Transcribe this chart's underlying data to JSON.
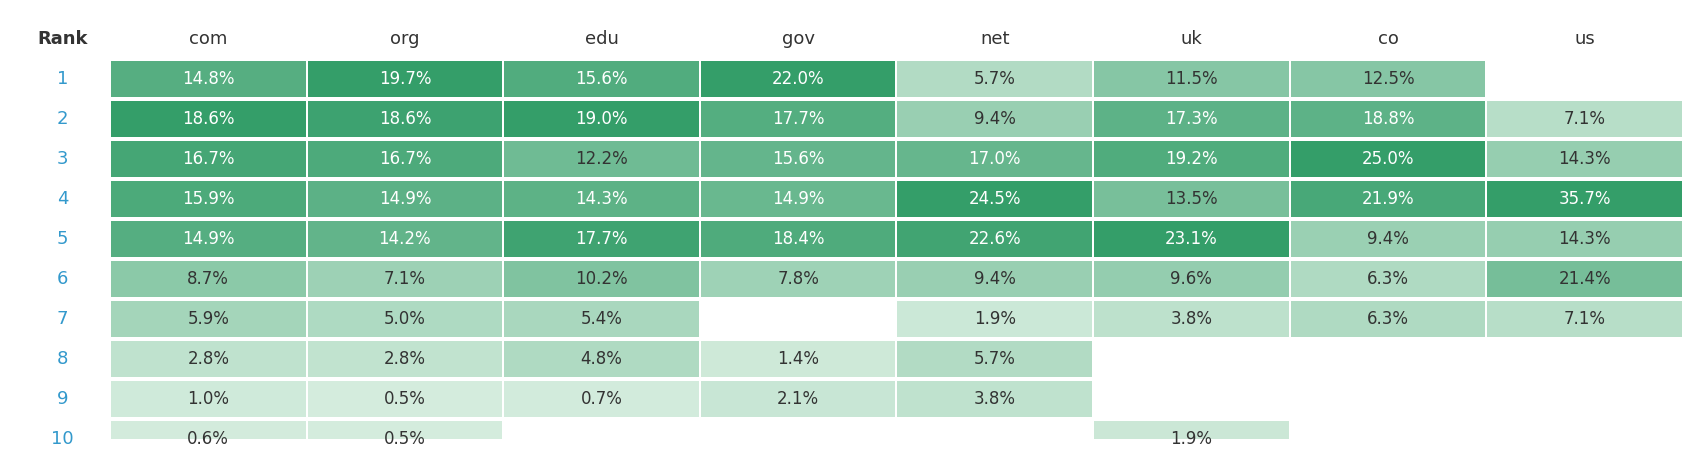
{
  "columns": [
    "Rank",
    "com",
    "org",
    "edu",
    "gov",
    "net",
    "uk",
    "co",
    "us"
  ],
  "rows": [
    [
      1,
      "14.8%",
      "19.7%",
      "15.6%",
      "22.0%",
      "5.7%",
      "11.5%",
      "12.5%",
      ""
    ],
    [
      2,
      "18.6%",
      "18.6%",
      "19.0%",
      "17.7%",
      "9.4%",
      "17.3%",
      "18.8%",
      "7.1%"
    ],
    [
      3,
      "16.7%",
      "16.7%",
      "12.2%",
      "15.6%",
      "17.0%",
      "19.2%",
      "25.0%",
      "14.3%"
    ],
    [
      4,
      "15.9%",
      "14.9%",
      "14.3%",
      "14.9%",
      "24.5%",
      "13.5%",
      "21.9%",
      "35.7%"
    ],
    [
      5,
      "14.9%",
      "14.2%",
      "17.7%",
      "18.4%",
      "22.6%",
      "23.1%",
      "9.4%",
      "14.3%"
    ],
    [
      6,
      "8.7%",
      "7.1%",
      "10.2%",
      "7.8%",
      "9.4%",
      "9.6%",
      "6.3%",
      "21.4%"
    ],
    [
      7,
      "5.9%",
      "5.0%",
      "5.4%",
      "",
      "1.9%",
      "3.8%",
      "6.3%",
      "7.1%"
    ],
    [
      8,
      "2.8%",
      "2.8%",
      "4.8%",
      "1.4%",
      "5.7%",
      "",
      "",
      ""
    ],
    [
      9,
      "1.0%",
      "0.5%",
      "0.7%",
      "2.1%",
      "3.8%",
      "",
      "",
      ""
    ],
    [
      10,
      "0.6%",
      "0.5%",
      "",
      "",
      "",
      "1.9%",
      "",
      ""
    ]
  ],
  "values": [
    [
      14.8,
      19.7,
      15.6,
      22.0,
      5.7,
      11.5,
      12.5,
      null
    ],
    [
      18.6,
      18.6,
      19.0,
      17.7,
      9.4,
      17.3,
      18.8,
      7.1
    ],
    [
      16.7,
      16.7,
      12.2,
      15.6,
      17.0,
      19.2,
      25.0,
      14.3
    ],
    [
      15.9,
      14.9,
      14.3,
      14.9,
      24.5,
      13.5,
      21.9,
      35.7
    ],
    [
      14.9,
      14.2,
      17.7,
      18.4,
      22.6,
      23.1,
      9.4,
      14.3
    ],
    [
      8.7,
      7.1,
      10.2,
      7.8,
      9.4,
      9.6,
      6.3,
      21.4
    ],
    [
      5.9,
      5.0,
      5.4,
      null,
      1.9,
      3.8,
      6.3,
      7.1
    ],
    [
      2.8,
      2.8,
      4.8,
      1.4,
      5.7,
      null,
      null,
      null
    ],
    [
      1.0,
      0.5,
      0.7,
      2.1,
      3.8,
      null,
      null,
      null
    ],
    [
      0.6,
      0.5,
      null,
      null,
      null,
      1.9,
      null,
      null
    ]
  ],
  "rank_text_color": "#3399cc",
  "header_text_color": "#333333",
  "cell_text_color": "#333333",
  "fig_bg": "#ffffff",
  "color_light": [
    216,
    238,
    224
  ],
  "color_dark": [
    52,
    158,
    105
  ],
  "dark_cell_text": "#ffffff",
  "dark_threshold": 0.65
}
